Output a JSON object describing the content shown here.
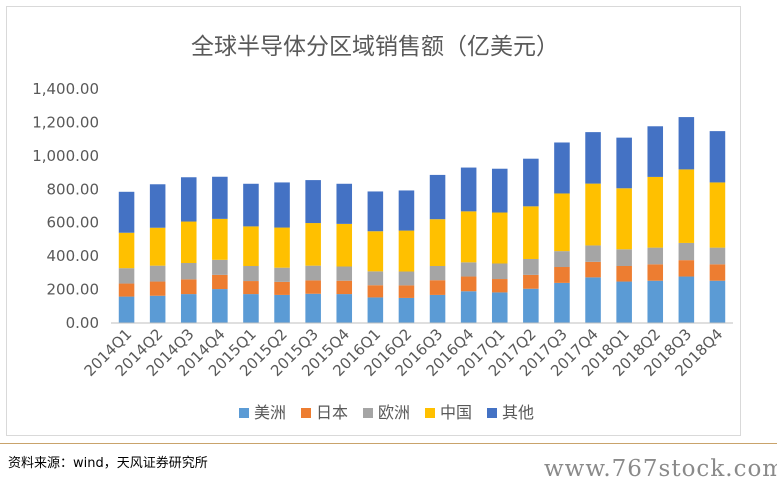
{
  "source_text": "资料来源：wind，天风证券研究所",
  "watermark": "www.767stock.com",
  "colors": {
    "美洲": "#5b9bd5",
    "日本": "#ed7d31",
    "欧洲": "#a5a5a5",
    "中国": "#ffc000",
    "其他": "#4472c4"
  },
  "chart_data": {
    "type": "bar",
    "stacked": true,
    "title": "全球半导体分区域销售额（亿美元）",
    "xlabel": "",
    "ylabel": "",
    "ylim": [
      0,
      1400
    ],
    "yticks": [
      "0.00",
      "200.00",
      "400.00",
      "600.00",
      "800.00",
      "1,000.00",
      "1,200.00",
      "1,400.00"
    ],
    "grid": false,
    "legend": "bottom",
    "categories": [
      "2014Q1",
      "2014Q2",
      "2014Q3",
      "2014Q4",
      "2015Q1",
      "2015Q2",
      "2015Q3",
      "2015Q4",
      "2016Q1",
      "2016Q2",
      "2016Q3",
      "2016Q4",
      "2017Q1",
      "2017Q2",
      "2017Q3",
      "2017Q4",
      "2018Q1",
      "2018Q2",
      "2018Q3",
      "2018Q4"
    ],
    "series": [
      {
        "name": "美洲",
        "values": [
          158,
          163,
          173,
          203,
          173,
          168,
          175,
          173,
          153,
          150,
          168,
          190,
          183,
          205,
          240,
          273,
          248,
          253,
          278,
          253
        ]
      },
      {
        "name": "日本",
        "values": [
          78,
          85,
          88,
          85,
          78,
          78,
          80,
          80,
          73,
          75,
          88,
          88,
          80,
          83,
          95,
          93,
          93,
          98,
          98,
          98
        ]
      },
      {
        "name": "欧洲",
        "values": [
          92,
          95,
          98,
          90,
          90,
          85,
          88,
          85,
          83,
          83,
          85,
          85,
          93,
          95,
          95,
          98,
          100,
          100,
          103,
          100
        ]
      },
      {
        "name": "中国",
        "values": [
          212,
          227,
          248,
          245,
          237,
          240,
          255,
          255,
          240,
          245,
          280,
          305,
          305,
          315,
          345,
          370,
          365,
          423,
          440,
          390
        ]
      },
      {
        "name": "其他",
        "values": [
          245,
          260,
          265,
          252,
          255,
          270,
          257,
          240,
          238,
          240,
          265,
          262,
          262,
          285,
          305,
          308,
          303,
          303,
          313,
          307
        ]
      }
    ]
  }
}
